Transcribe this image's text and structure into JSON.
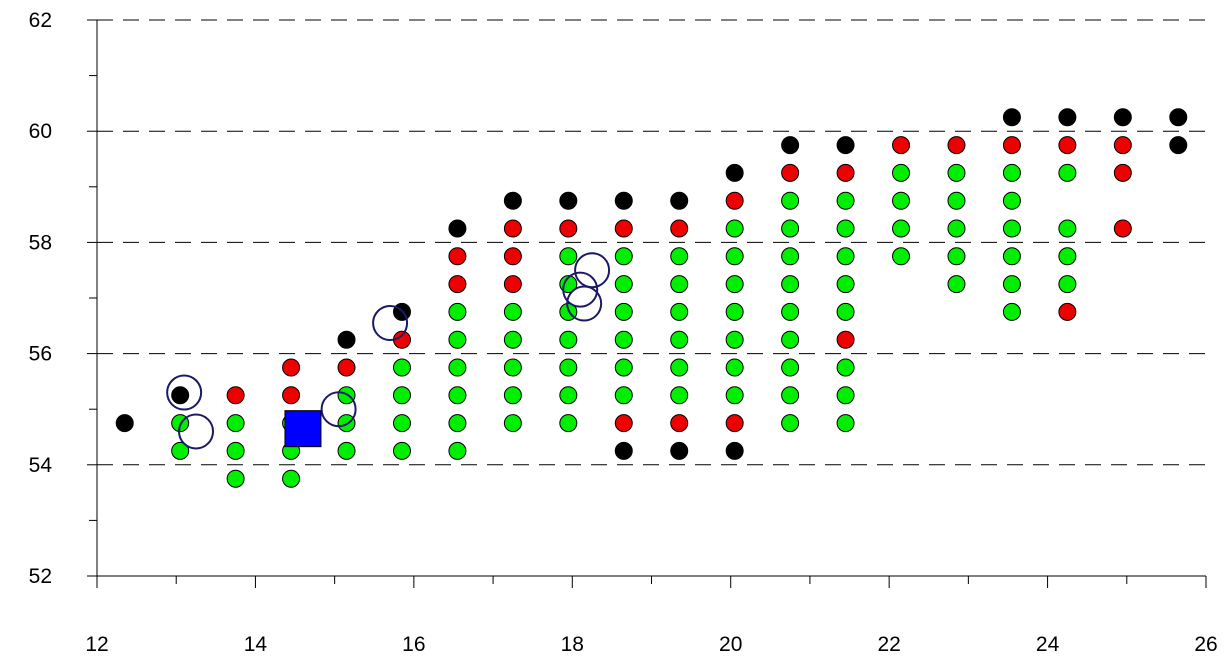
{
  "chart_data": {
    "type": "scatter",
    "title": "",
    "xlabel": "",
    "ylabel": "",
    "xlim": [
      12,
      26
    ],
    "ylim": [
      52,
      62
    ],
    "x_ticks": [
      12,
      14,
      16,
      18,
      20,
      22,
      24,
      26
    ],
    "y_ticks": [
      52,
      54,
      56,
      58,
      60,
      62
    ],
    "x_tick_labels": [
      "12",
      "14",
      "16",
      "18",
      "20",
      "22",
      "24",
      "26"
    ],
    "y_tick_labels": [
      "52",
      "54",
      "56",
      "58",
      "60",
      "62"
    ],
    "grid": "dashed horizontal lines at major y ticks",
    "legend": "none",
    "colors": {
      "green": "#00ee00",
      "red": "#ee0000",
      "black": "#000000",
      "ring": "#1a1a66",
      "square": "#0000ff"
    },
    "columns": [
      {
        "x": 12.35,
        "black": [
          54.75
        ]
      },
      {
        "x": 13.05,
        "green": [
          54.25,
          54.75
        ],
        "black": [
          55.25
        ]
      },
      {
        "x": 13.75,
        "green": [
          53.75,
          54.25,
          54.75
        ],
        "red": [
          55.25
        ]
      },
      {
        "x": 14.45,
        "green": [
          53.75,
          54.25,
          54.75
        ],
        "red": [
          55.25,
          55.75
        ]
      },
      {
        "x": 15.15,
        "green": [
          54.25,
          54.75,
          55.25
        ],
        "red": [
          55.75
        ],
        "black": [
          56.25
        ]
      },
      {
        "x": 15.85,
        "green": [
          54.25,
          54.75,
          55.25,
          55.75
        ],
        "red": [
          56.25
        ],
        "black": [
          56.75
        ]
      },
      {
        "x": 16.55,
        "green": [
          54.25,
          54.75,
          55.25,
          55.75,
          56.25,
          56.75
        ],
        "red": [
          57.25,
          57.75
        ],
        "black": [
          58.25
        ]
      },
      {
        "x": 17.25,
        "green": [
          54.75,
          55.25,
          55.75,
          56.25,
          56.75
        ],
        "red": [
          57.25,
          57.75,
          58.25
        ],
        "black": [
          58.75
        ]
      },
      {
        "x": 17.95,
        "green": [
          54.75,
          55.25,
          55.75,
          56.25,
          56.75,
          57.25,
          57.75
        ],
        "red": [
          58.25
        ],
        "black": [
          58.75
        ]
      },
      {
        "x": 18.65,
        "black": [
          54.25
        ],
        "red": [
          54.75,
          58.25
        ],
        "green": [
          55.25,
          55.75,
          56.25,
          56.75,
          57.25,
          57.75
        ],
        "black_top": [
          58.75
        ]
      },
      {
        "x": 19.35,
        "black": [
          54.25
        ],
        "red": [
          54.75,
          58.25
        ],
        "green": [
          55.25,
          55.75,
          56.25,
          56.75,
          57.25,
          57.75
        ],
        "black_top": [
          58.75
        ]
      },
      {
        "x": 20.05,
        "black": [
          54.25
        ],
        "red": [
          54.75,
          58.75
        ],
        "green": [
          55.25,
          55.75,
          56.25,
          56.75,
          57.25,
          57.75,
          58.25
        ],
        "black_top": [
          59.25
        ]
      },
      {
        "x": 20.75,
        "green": [
          54.75,
          55.25,
          55.75,
          56.25,
          56.75,
          57.25,
          57.75,
          58.25,
          58.75
        ],
        "red": [
          59.25
        ],
        "black": [
          59.75
        ]
      },
      {
        "x": 21.45,
        "green": [
          54.75,
          55.25,
          55.75,
          56.75,
          57.25,
          57.75,
          58.25,
          58.75
        ],
        "red": [
          56.25,
          59.25
        ],
        "black": [
          59.75
        ]
      },
      {
        "x": 22.15,
        "green": [
          57.75,
          58.25,
          58.75,
          59.25
        ],
        "red": [
          59.75
        ]
      },
      {
        "x": 22.85,
        "green": [
          57.25,
          57.75,
          58.25,
          58.75,
          59.25
        ],
        "red": [
          59.75
        ]
      },
      {
        "x": 23.55,
        "green": [
          56.75,
          57.25,
          57.75,
          58.25,
          58.75,
          59.25
        ],
        "red": [
          59.75
        ],
        "black": [
          60.25
        ]
      },
      {
        "x": 24.25,
        "red": [
          56.75,
          59.75
        ],
        "green": [
          57.25,
          57.75,
          58.25,
          59.25
        ],
        "black": [
          60.25
        ]
      },
      {
        "x": 24.95,
        "red": [
          58.25,
          59.25,
          59.75
        ],
        "black": [
          60.25
        ]
      },
      {
        "x": 25.65,
        "black": [
          59.75,
          60.25
        ]
      }
    ],
    "open_circles": [
      {
        "x": 13.1,
        "y": 55.3
      },
      {
        "x": 13.25,
        "y": 54.6
      },
      {
        "x": 15.05,
        "y": 55.0
      },
      {
        "x": 15.7,
        "y": 56.55
      },
      {
        "x": 18.25,
        "y": 57.5
      },
      {
        "x": 18.1,
        "y": 57.15
      },
      {
        "x": 18.15,
        "y": 56.9
      }
    ],
    "squares": [
      {
        "x": 14.6,
        "y": 54.65
      }
    ]
  }
}
